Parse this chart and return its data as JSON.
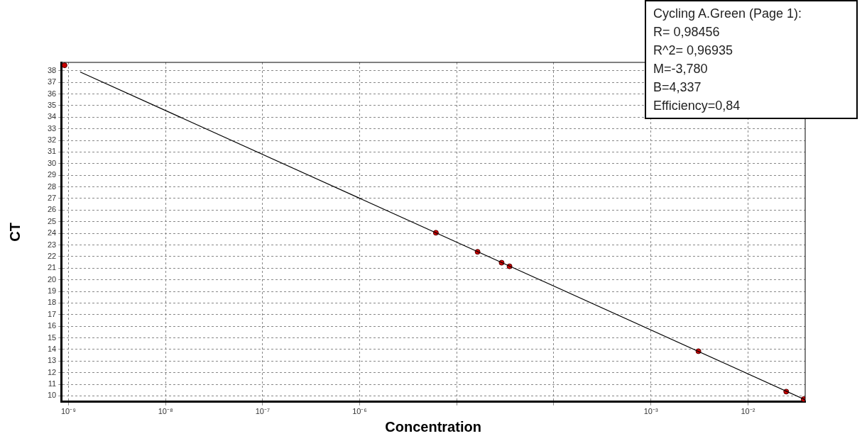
{
  "chart_data": {
    "type": "scatter",
    "xlabel": "Concentration",
    "ylabel": "CT",
    "log": "x",
    "xlim": [
      8.43e-10,
      0.0389
    ],
    "xticks": [
      {
        "value": 1e-09,
        "label": "10⁻⁹"
      },
      {
        "value": 1e-08,
        "label": "10⁻⁸"
      },
      {
        "value": 1e-07,
        "label": "10⁻⁷"
      },
      {
        "value": 1e-06,
        "label": "10⁻⁶"
      },
      {
        "value": 1e-05,
        "label": null
      },
      {
        "value": 0.0001,
        "label": null
      },
      {
        "value": 0.001,
        "label": "10⁻³"
      },
      {
        "value": 0.01,
        "label": "10⁻²"
      }
    ],
    "ylim": [
      9.49,
      38.72
    ],
    "yticks": [
      10,
      11,
      12,
      13,
      14,
      15,
      16,
      17,
      18,
      19,
      20,
      21,
      22,
      23,
      24,
      25,
      26,
      27,
      28,
      29,
      30,
      31,
      32,
      33,
      34,
      35,
      36,
      37,
      38
    ],
    "grid": true,
    "legend": false,
    "marker": "circle",
    "series": [
      {
        "type": "scatter",
        "color": "#cc0000",
        "x": [
          9.12e-10,
          6.1e-06,
          1.64e-05,
          2.9e-05,
          3.5e-05,
          0.00309,
          0.0248,
          0.0375
        ],
        "values": [
          38.47,
          24.05,
          22.41,
          21.47,
          21.16,
          13.85,
          10.37,
          9.72
        ]
      },
      {
        "type": "line",
        "color": "#000000",
        "marker": "none",
        "x": [
          1.32e-09,
          0.0389
        ],
        "values": [
          37.9,
          9.67
        ]
      }
    ],
    "annotations": [
      "Cycling A.Green (Page 1):",
      "R= 0,98456",
      "R^2= 0,96935",
      "M=-3,780",
      "B=4,337",
      "Efficiency=0,84"
    ]
  }
}
